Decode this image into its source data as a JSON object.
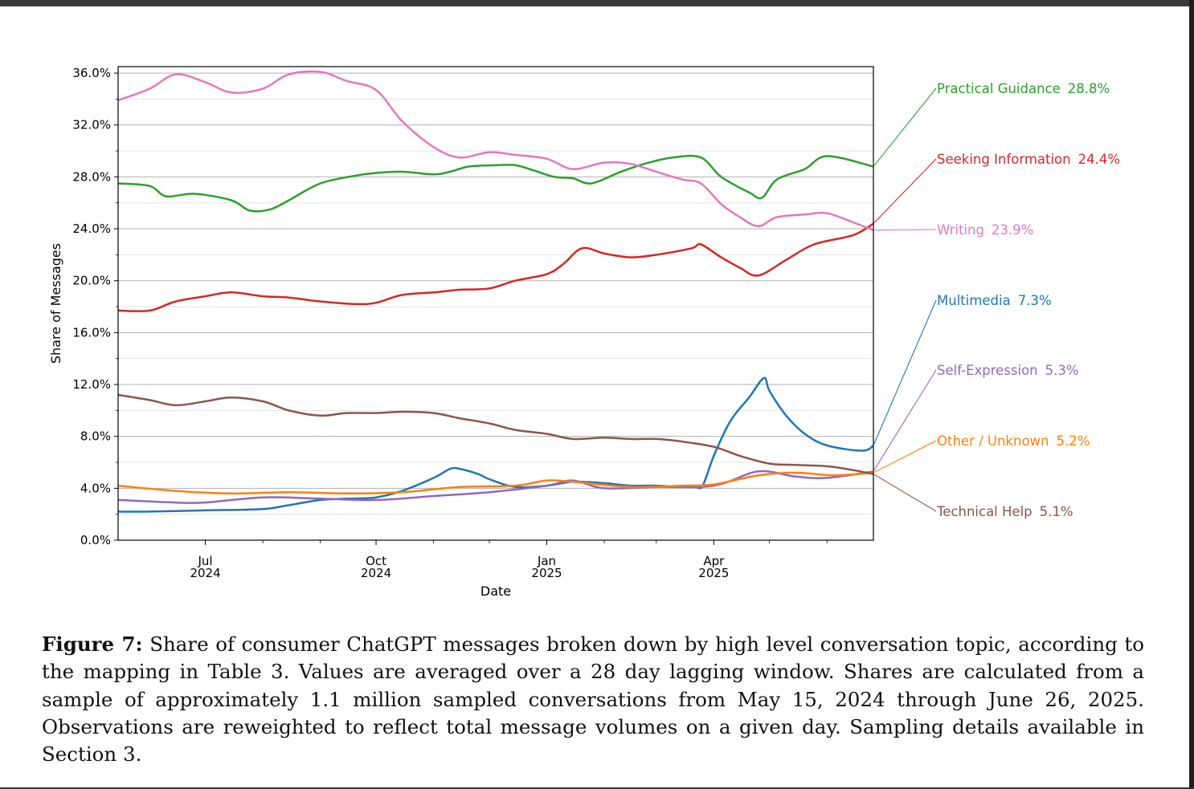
{
  "chart_data": {
    "type": "line",
    "xlabel": "Date",
    "ylabel": "Share of Messages",
    "xlim": [
      "2024-05-15",
      "2025-06-26"
    ],
    "ylim": [
      0,
      36.5
    ],
    "grid": "horizontal",
    "x_ticks": [
      {
        "date": "2024-07-01",
        "label1": "Jul",
        "label2": "2024"
      },
      {
        "date": "2024-10-01",
        "label1": "Oct",
        "label2": "2024"
      },
      {
        "date": "2025-01-01",
        "label1": "Jan",
        "label2": "2025"
      },
      {
        "date": "2025-04-01",
        "label1": "Apr",
        "label2": "2025"
      }
    ],
    "x_minor_ticks": [
      "2024-08-01",
      "2024-09-01",
      "2024-11-01",
      "2024-12-01",
      "2025-02-01",
      "2025-03-01",
      "2025-05-01",
      "2025-06-01"
    ],
    "y_ticks": [
      {
        "value": 0,
        "label": "0.0%"
      },
      {
        "value": 4,
        "label": "4.0%"
      },
      {
        "value": 8,
        "label": "8.0%"
      },
      {
        "value": 12,
        "label": "12.0%"
      },
      {
        "value": 16,
        "label": "16.0%"
      },
      {
        "value": 20,
        "label": "20.0%"
      },
      {
        "value": 24,
        "label": "24.0%"
      },
      {
        "value": 28,
        "label": "28.0%"
      },
      {
        "value": 32,
        "label": "32.0%"
      },
      {
        "value": 36,
        "label": "36.0%"
      }
    ],
    "series": [
      {
        "name": "Practical Guidance",
        "end_label": "28.8%",
        "color": "#2ca02c",
        "x": [
          "2024-05-15",
          "2024-06-01",
          "2024-06-10",
          "2024-06-25",
          "2024-07-15",
          "2024-07-25",
          "2024-08-05",
          "2024-08-15",
          "2024-09-01",
          "2024-09-20",
          "2024-10-01",
          "2024-10-15",
          "2024-11-01",
          "2024-11-10",
          "2024-11-20",
          "2024-12-05",
          "2024-12-15",
          "2024-12-25",
          "2025-01-05",
          "2025-01-15",
          "2025-01-25",
          "2025-02-10",
          "2025-02-25",
          "2025-03-10",
          "2025-03-25",
          "2025-04-05",
          "2025-04-20",
          "2025-04-27",
          "2025-05-05",
          "2025-05-20",
          "2025-06-01",
          "2025-06-26"
        ],
        "y": [
          27.5,
          27.3,
          26.5,
          26.7,
          26.2,
          25.4,
          25.5,
          26.2,
          27.5,
          28.1,
          28.3,
          28.4,
          28.2,
          28.4,
          28.8,
          28.9,
          28.9,
          28.5,
          28,
          27.9,
          27.5,
          28.4,
          29.1,
          29.5,
          29.5,
          28,
          26.8,
          26.4,
          27.8,
          28.6,
          29.6,
          28.8
        ]
      },
      {
        "name": "Seeking Information",
        "end_label": "24.4%",
        "color": "#d62728",
        "x": [
          "2024-05-15",
          "2024-06-01",
          "2024-06-15",
          "2024-07-01",
          "2024-07-15",
          "2024-08-01",
          "2024-08-15",
          "2024-09-01",
          "2024-09-20",
          "2024-10-01",
          "2024-10-15",
          "2024-11-01",
          "2024-11-15",
          "2024-12-01",
          "2024-12-15",
          "2025-01-01",
          "2025-01-10",
          "2025-01-20",
          "2025-02-01",
          "2025-02-15",
          "2025-03-01",
          "2025-03-20",
          "2025-03-25",
          "2025-04-05",
          "2025-04-15",
          "2025-04-25",
          "2025-05-10",
          "2025-05-25",
          "2025-06-15",
          "2025-06-26"
        ],
        "y": [
          17.7,
          17.7,
          18.4,
          18.8,
          19.1,
          18.8,
          18.7,
          18.4,
          18.2,
          18.3,
          18.9,
          19.1,
          19.3,
          19.4,
          20,
          20.5,
          21.3,
          22.5,
          22.1,
          21.8,
          22.0,
          22.5,
          22.8,
          21.8,
          21.0,
          20.4,
          21.6,
          22.8,
          23.5,
          24.4
        ]
      },
      {
        "name": "Writing",
        "end_label": "23.9%",
        "color": "#e377c2",
        "x": [
          "2024-05-15",
          "2024-06-01",
          "2024-06-15",
          "2024-07-01",
          "2024-07-15",
          "2024-08-01",
          "2024-08-15",
          "2024-09-01",
          "2024-09-15",
          "2024-10-01",
          "2024-10-15",
          "2024-11-01",
          "2024-11-15",
          "2024-12-01",
          "2024-12-15",
          "2025-01-01",
          "2025-01-15",
          "2025-02-01",
          "2025-02-15",
          "2025-03-01",
          "2025-03-15",
          "2025-03-25",
          "2025-04-05",
          "2025-04-15",
          "2025-04-25",
          "2025-05-05",
          "2025-05-20",
          "2025-06-01",
          "2025-06-15",
          "2025-06-26"
        ],
        "y": [
          33.9,
          34.8,
          35.9,
          35.3,
          34.5,
          34.8,
          35.9,
          36.1,
          35.4,
          34.7,
          32.3,
          30.3,
          29.5,
          29.9,
          29.7,
          29.4,
          28.6,
          29.1,
          29.0,
          28.4,
          27.8,
          27.5,
          25.9,
          24.9,
          24.2,
          24.9,
          25.1,
          25.2,
          24.5,
          23.9
        ]
      },
      {
        "name": "Multimedia",
        "end_label": "7.3%",
        "color": "#1f77b4",
        "x": [
          "2024-05-15",
          "2024-06-01",
          "2024-07-01",
          "2024-08-01",
          "2024-08-15",
          "2024-09-01",
          "2024-09-15",
          "2024-10-01",
          "2024-10-15",
          "2024-11-01",
          "2024-11-10",
          "2024-11-15",
          "2024-11-25",
          "2024-12-01",
          "2024-12-15",
          "2025-01-01",
          "2025-01-15",
          "2025-02-01",
          "2025-02-15",
          "2025-03-01",
          "2025-03-15",
          "2025-03-22",
          "2025-03-26",
          "2025-04-01",
          "2025-04-10",
          "2025-04-20",
          "2025-04-28",
          "2025-05-01",
          "2025-05-10",
          "2025-05-20",
          "2025-06-01",
          "2025-06-20",
          "2025-06-26"
        ],
        "y": [
          2.2,
          2.2,
          2.3,
          2.4,
          2.7,
          3.1,
          3.2,
          3.3,
          3.8,
          4.8,
          5.5,
          5.5,
          5.1,
          4.7,
          4.1,
          4.2,
          4.5,
          4.4,
          4.2,
          4.2,
          4.1,
          4.1,
          4.2,
          6.5,
          9.2,
          11.0,
          12.5,
          11.5,
          9.6,
          8.2,
          7.3,
          6.9,
          7.3
        ]
      },
      {
        "name": "Self-Expression",
        "end_label": "5.3%",
        "color": "#9467bd",
        "x": [
          "2024-05-15",
          "2024-06-15",
          "2024-07-01",
          "2024-08-01",
          "2024-09-01",
          "2024-10-01",
          "2024-11-01",
          "2024-12-01",
          "2025-01-01",
          "2025-01-15",
          "2025-02-01",
          "2025-03-01",
          "2025-04-01",
          "2025-04-25",
          "2025-05-15",
          "2025-06-01",
          "2025-06-26"
        ],
        "y": [
          3.1,
          2.9,
          2.9,
          3.3,
          3.2,
          3.1,
          3.4,
          3.7,
          4.2,
          4.6,
          4.0,
          4.1,
          4.2,
          5.3,
          4.9,
          4.8,
          5.3
        ]
      },
      {
        "name": "Other / Unknown",
        "end_label": "5.2%",
        "color": "#ff7f0e",
        "x": [
          "2024-05-15",
          "2024-06-15",
          "2024-07-15",
          "2024-08-15",
          "2024-09-15",
          "2024-10-15",
          "2024-11-15",
          "2024-12-15",
          "2025-01-01",
          "2025-01-15",
          "2025-02-15",
          "2025-03-15",
          "2025-04-01",
          "2025-04-25",
          "2025-05-15",
          "2025-06-05",
          "2025-06-26"
        ],
        "y": [
          4.2,
          3.8,
          3.6,
          3.7,
          3.6,
          3.7,
          4.1,
          4.2,
          4.6,
          4.5,
          4.1,
          4.2,
          4.3,
          5.0,
          5.2,
          5.0,
          5.2
        ]
      },
      {
        "name": "Technical Help",
        "end_label": "5.1%",
        "color": "#8c564b",
        "x": [
          "2024-05-15",
          "2024-06-01",
          "2024-06-15",
          "2024-07-01",
          "2024-07-15",
          "2024-08-01",
          "2024-08-15",
          "2024-09-01",
          "2024-09-15",
          "2024-10-01",
          "2024-10-15",
          "2024-11-01",
          "2024-11-15",
          "2024-12-01",
          "2024-12-15",
          "2025-01-01",
          "2025-01-15",
          "2025-02-01",
          "2025-02-15",
          "2025-03-01",
          "2025-03-15",
          "2025-04-01",
          "2025-04-15",
          "2025-05-01",
          "2025-05-15",
          "2025-06-01",
          "2025-06-15",
          "2025-06-26"
        ],
        "y": [
          11.2,
          10.8,
          10.4,
          10.7,
          11.0,
          10.7,
          10.0,
          9.6,
          9.8,
          9.8,
          9.9,
          9.8,
          9.4,
          9.0,
          8.5,
          8.2,
          7.8,
          7.9,
          7.8,
          7.8,
          7.6,
          7.2,
          6.5,
          5.9,
          5.8,
          5.7,
          5.4,
          5.1
        ]
      }
    ]
  },
  "caption": {
    "label": "Figure 7:",
    "text": "Share of consumer ChatGPT messages broken down by high level conversation topic, according to the mapping in Table 3. Values are averaged over a 28 day lagging window. Shares are calculated from a sample of approximately 1.1 million sampled conversations from May 15, 2024 through June 26, 2025. Observations are reweighted to reflect total message volumes on a given day. Sampling details available in Section 3."
  }
}
